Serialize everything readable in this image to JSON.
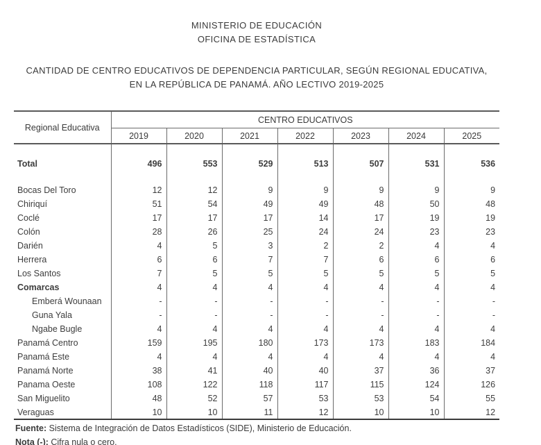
{
  "header": {
    "line1": "MINISTERIO DE EDUCACIÓN",
    "line2": "OFICINA DE ESTADÍSTICA",
    "title_line1": "CANTIDAD DE CENTRO EDUCATIVOS DE DEPENDENCIA PARTICULAR, SEGÚN REGIONAL EDUCATIVA,",
    "title_line2": "EN LA REPÚBLICA DE PANAMÁ. AÑO LECTIVO 2019-2025"
  },
  "table": {
    "row_header_label": "Regional Educativa",
    "group_header": "CENTRO EDUCATIVOS",
    "years": [
      "2019",
      "2020",
      "2021",
      "2022",
      "2023",
      "2024",
      "2025"
    ],
    "total_row": {
      "label": "Total",
      "values": [
        496,
        553,
        529,
        513,
        507,
        531,
        536
      ]
    },
    "rows": [
      {
        "label": "Bocas Del Toro",
        "indent": false,
        "bold": false,
        "values": [
          12,
          12,
          9,
          9,
          9,
          9,
          9
        ]
      },
      {
        "label": "Chiriquí",
        "indent": false,
        "bold": false,
        "values": [
          51,
          54,
          49,
          49,
          48,
          50,
          48
        ]
      },
      {
        "label": "Coclé",
        "indent": false,
        "bold": false,
        "values": [
          17,
          17,
          17,
          14,
          17,
          19,
          19
        ]
      },
      {
        "label": "Colón",
        "indent": false,
        "bold": false,
        "values": [
          28,
          26,
          25,
          24,
          24,
          23,
          23
        ]
      },
      {
        "label": "Darién",
        "indent": false,
        "bold": false,
        "values": [
          4,
          5,
          3,
          2,
          2,
          4,
          4
        ]
      },
      {
        "label": "Herrera",
        "indent": false,
        "bold": false,
        "values": [
          6,
          6,
          7,
          7,
          6,
          6,
          6
        ]
      },
      {
        "label": "Los Santos",
        "indent": false,
        "bold": false,
        "values": [
          7,
          5,
          5,
          5,
          5,
          5,
          5
        ]
      },
      {
        "label": "Comarcas",
        "indent": false,
        "bold": true,
        "values": [
          4,
          4,
          4,
          4,
          4,
          4,
          4
        ]
      },
      {
        "label": "Emberá Wounaan",
        "indent": true,
        "bold": false,
        "values": [
          "-",
          "-",
          "-",
          "-",
          "-",
          "-",
          "-"
        ]
      },
      {
        "label": "Guna Yala",
        "indent": true,
        "bold": false,
        "values": [
          "-",
          "-",
          "-",
          "-",
          "-",
          "-",
          "-"
        ]
      },
      {
        "label": "Ngabe Bugle",
        "indent": true,
        "bold": false,
        "values": [
          4,
          4,
          4,
          4,
          4,
          4,
          4
        ]
      },
      {
        "label": "Panamá Centro",
        "indent": false,
        "bold": false,
        "values": [
          159,
          195,
          180,
          173,
          173,
          183,
          184
        ]
      },
      {
        "label": "Panamá Este",
        "indent": false,
        "bold": false,
        "values": [
          4,
          4,
          4,
          4,
          4,
          4,
          4
        ]
      },
      {
        "label": "Panamá Norte",
        "indent": false,
        "bold": false,
        "values": [
          38,
          41,
          40,
          40,
          37,
          36,
          37
        ]
      },
      {
        "label": "Panama Oeste",
        "indent": false,
        "bold": false,
        "values": [
          108,
          122,
          118,
          117,
          115,
          124,
          126
        ]
      },
      {
        "label": "San Miguelito",
        "indent": false,
        "bold": false,
        "values": [
          48,
          52,
          57,
          53,
          53,
          54,
          55
        ]
      },
      {
        "label": "Veraguas",
        "indent": false,
        "bold": false,
        "values": [
          10,
          10,
          11,
          12,
          10,
          10,
          12
        ]
      }
    ]
  },
  "footer": {
    "source_label": "Fuente:",
    "source_text": " Sistema de Integración de Datos Estadísticos (SIDE), Ministerio de Educación.",
    "note_label": "Nota (-):",
    "note_text": " Cifra nula o cero."
  }
}
